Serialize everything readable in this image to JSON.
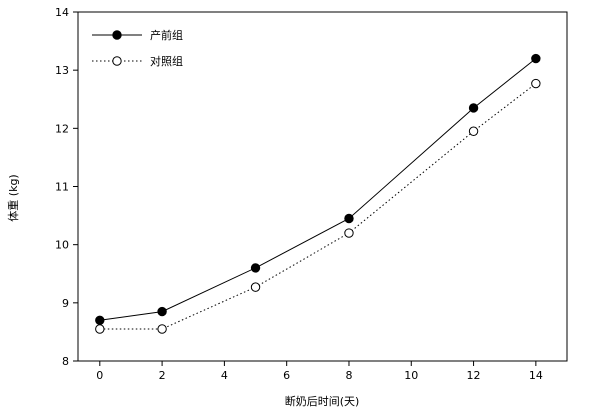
{
  "chart_data": {
    "type": "line",
    "title": "",
    "xlabel": "断奶后时间(天)",
    "ylabel": "体重 (kg)",
    "x": [
      0,
      2,
      5,
      8,
      12,
      14
    ],
    "xlim": [
      -0.7,
      15
    ],
    "ylim": [
      8,
      14
    ],
    "xticks": [
      0,
      2,
      4,
      6,
      8,
      10,
      12,
      14
    ],
    "yticks": [
      8,
      9,
      10,
      11,
      12,
      13,
      14
    ],
    "grid": false,
    "legend_position": "top-left",
    "series": [
      {
        "name": "产前组",
        "values": [
          8.7,
          8.85,
          9.6,
          10.45,
          12.35,
          13.2
        ],
        "marker": "filled-circle",
        "line_style": "solid",
        "color": "#000000"
      },
      {
        "name": "对照组",
        "values": [
          8.55,
          8.55,
          9.27,
          10.2,
          11.95,
          12.77
        ],
        "marker": "open-circle",
        "line_style": "dotted",
        "color": "#000000"
      }
    ]
  }
}
